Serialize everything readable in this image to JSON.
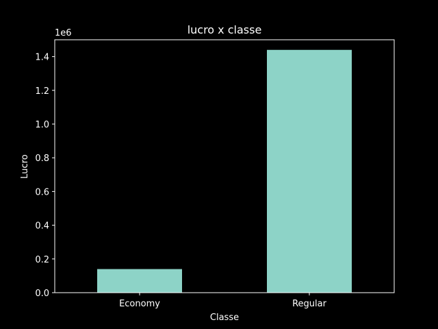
{
  "chart_data": {
    "type": "bar",
    "title": "lucro x classe",
    "xlabel": "Classe",
    "ylabel": "Lucro",
    "y_offset_label": "1e6",
    "categories": [
      "Economy",
      "Regular"
    ],
    "values": [
      140000,
      1440000
    ],
    "ylim": [
      0,
      1500000
    ],
    "yticks": [
      0,
      200000,
      400000,
      600000,
      800000,
      1000000,
      1200000,
      1400000
    ],
    "ytick_labels": [
      "0.0",
      "0.2",
      "0.4",
      "0.6",
      "0.8",
      "1.0",
      "1.2",
      "1.4"
    ],
    "grid": false,
    "legend": "none",
    "colors": {
      "background": "#000000",
      "bar": "#8dd3c7",
      "axis": "#ffffff",
      "text": "#ffffff"
    }
  }
}
